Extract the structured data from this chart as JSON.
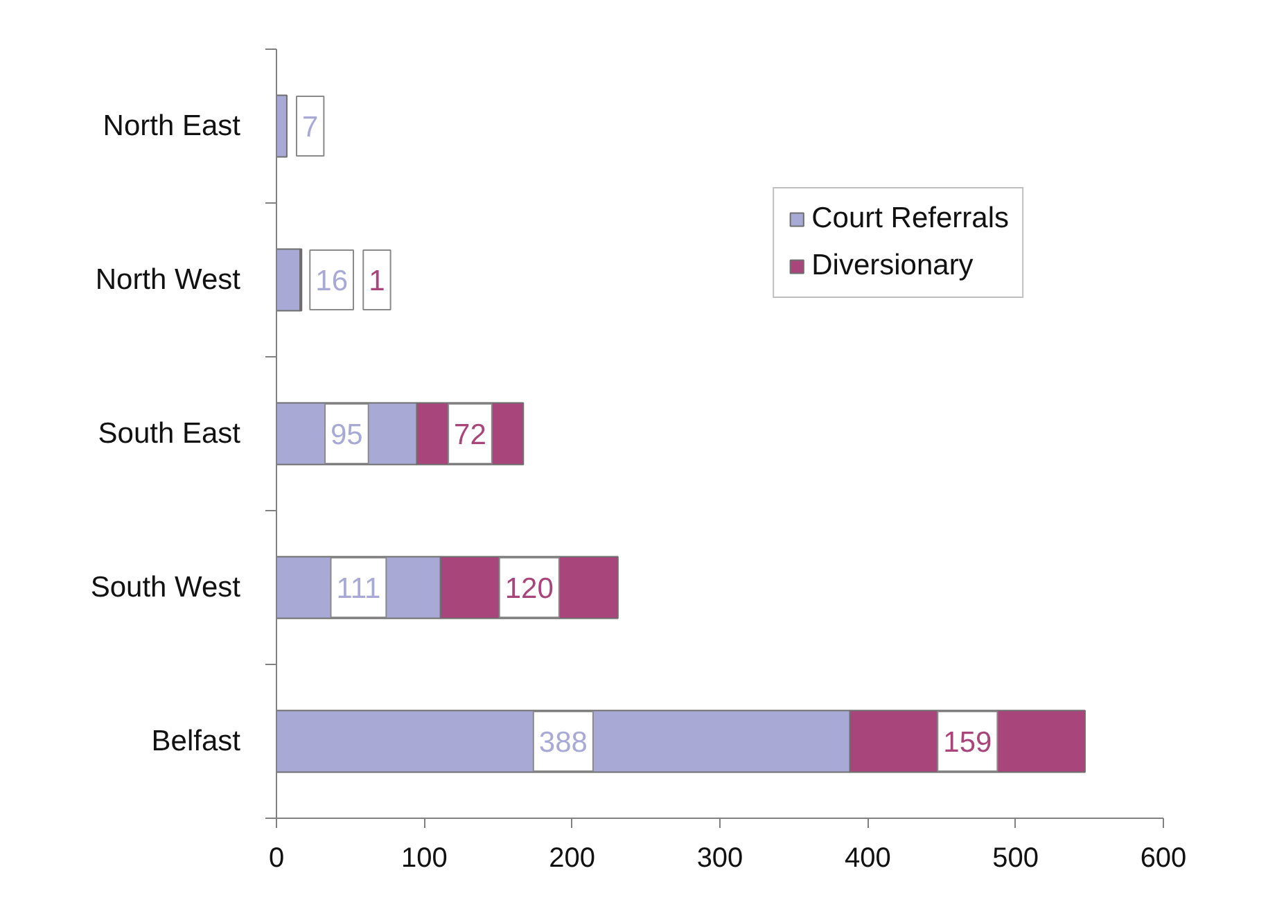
{
  "chart_data": {
    "type": "bar",
    "orientation": "horizontal",
    "stacked": true,
    "categories": [
      "North East",
      "North West",
      "South East",
      "South West",
      "Belfast"
    ],
    "series": [
      {
        "name": "Court Referrals",
        "color": "#a9a9d6",
        "values": [
          7,
          16,
          95,
          111,
          388
        ]
      },
      {
        "name": "Diversionary",
        "color": "#a8457a",
        "values": [
          null,
          1,
          72,
          120,
          159
        ]
      }
    ],
    "xlim": [
      0,
      600
    ],
    "xticks": [
      0,
      100,
      200,
      300,
      400,
      500,
      600
    ],
    "data_labels": true,
    "legend": "top right",
    "grid": false
  }
}
